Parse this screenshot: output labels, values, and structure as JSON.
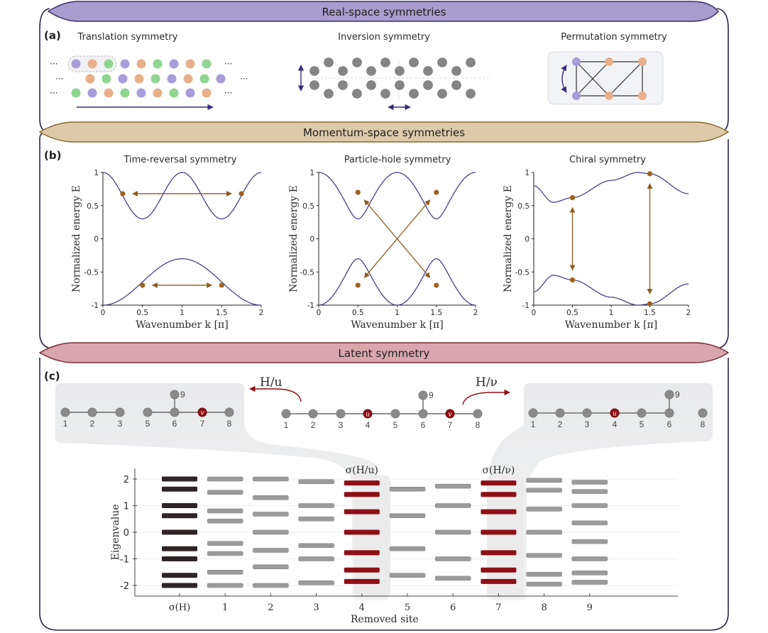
{
  "panels": {
    "a": {
      "label": "(a)",
      "header": "Real-space symmetries",
      "header_color": "#a99cce",
      "subtitles": [
        "Translation symmetry",
        "Inversion symmetry",
        "Permutation symmetry"
      ],
      "dots": "···",
      "lattice_colors": [
        "#a99cdb",
        "#e8b08a",
        "#8fd58f"
      ]
    },
    "b": {
      "label": "(b)",
      "header": "Momentum-space symmetries",
      "header_color": "#dccaa9"
    },
    "c": {
      "label": "(c)",
      "header": "Latent symmetry",
      "header_color": "#d9a6ae",
      "op_u": "H/υ",
      "op_u_text": "H/u",
      "op_v_text": "H/ν",
      "sigma_u": "σ(H/u)",
      "sigma_v": "σ(H/ν)",
      "node_u_mark": "u",
      "node_v_mark": "v",
      "graph_left_labels": [
        "1",
        "2",
        "3",
        "5",
        "6",
        "7",
        "8",
        "9"
      ],
      "graph_center_labels": [
        "1",
        "2",
        "3",
        "4",
        "5",
        "6",
        "7",
        "8",
        "9"
      ],
      "graph_right_labels": [
        "1",
        "2",
        "3",
        "4",
        "5",
        "6",
        "8",
        "9"
      ]
    }
  },
  "chart_data": [
    {
      "type": "line",
      "title": "Time-reversal symmetry",
      "xlabel": "Wavenumber k [π]",
      "ylabel": "Normalized energy E",
      "xlim": [
        0,
        2
      ],
      "ylim": [
        -1,
        1
      ],
      "xticks": [
        "0",
        "0.5",
        "1",
        "1.5",
        "2"
      ],
      "yticks": [
        "-1",
        "-0.5",
        "0",
        "0.5",
        "1"
      ],
      "series": [
        {
          "name": "upper band",
          "description": "E = 0.65 + 0.35cos(2πk)",
          "points_k": [
            0,
            0.25,
            0.5,
            0.75,
            1,
            1.25,
            1.5,
            1.75,
            2
          ],
          "points_E": [
            1,
            0.65,
            0.3,
            0.65,
            1,
            0.65,
            0.3,
            0.65,
            1
          ]
        },
        {
          "name": "lower band",
          "description": "E = -0.65 - 0.35cos(πk)",
          "points_k": [
            0,
            0.5,
            1,
            1.5,
            2
          ],
          "points_E": [
            -1,
            -0.7,
            -0.3,
            -0.7,
            -1
          ]
        }
      ],
      "markers": [
        [
          0.25,
          0.68
        ],
        [
          1.75,
          0.68
        ],
        [
          0.5,
          -0.7
        ],
        [
          1.5,
          -0.7
        ]
      ],
      "arrows": [
        [
          [
            0.25,
            0.68
          ],
          [
            1.75,
            0.68
          ]
        ],
        [
          [
            0.5,
            -0.7
          ],
          [
            1.5,
            -0.7
          ]
        ]
      ]
    },
    {
      "type": "line",
      "title": "Particle-hole symmetry",
      "xlabel": "Wavenumber k [π]",
      "ylabel": "Normalized energy E",
      "xlim": [
        0,
        2
      ],
      "ylim": [
        -1,
        1
      ],
      "xticks": [
        "0",
        "0.5",
        "1",
        "1.5",
        "2"
      ],
      "yticks": [
        "-1",
        "-0.5",
        "0",
        "0.5",
        "1"
      ],
      "series": [
        {
          "name": "upper band",
          "points_k": [
            0,
            0.5,
            1,
            1.5,
            2
          ],
          "points_E": [
            1,
            0.7,
            0.3,
            0.7,
            1
          ]
        },
        {
          "name": "lower band",
          "points_k": [
            0,
            0.5,
            1,
            1.5,
            2
          ],
          "points_E": [
            -1,
            -0.7,
            -0.3,
            -0.7,
            -1
          ]
        }
      ],
      "markers": [
        [
          0.5,
          0.7
        ],
        [
          1.5,
          0.7
        ],
        [
          0.5,
          -0.7
        ],
        [
          1.5,
          -0.7
        ]
      ],
      "arrows": [
        [
          [
            0.5,
            0.7
          ],
          [
            1.5,
            -0.7
          ]
        ],
        [
          [
            1.5,
            0.7
          ],
          [
            0.5,
            -0.7
          ]
        ]
      ]
    },
    {
      "type": "line",
      "title": "Chiral symmetry",
      "xlabel": "Wavenumber k [π]",
      "ylabel": "Normalized energy E",
      "xlim": [
        0,
        2
      ],
      "ylim": [
        -1,
        1
      ],
      "xticks": [
        "0",
        "0.5",
        "1",
        "1.5",
        "2"
      ],
      "yticks": [
        "-1",
        "-0.5",
        "0",
        "0.5",
        "1"
      ],
      "series": [
        {
          "name": "upper band",
          "points_k": [
            0,
            0.25,
            0.5,
            1,
            1.35,
            1.5,
            2
          ],
          "points_E": [
            0.8,
            0.55,
            0.62,
            0.88,
            1,
            0.98,
            0.68
          ]
        },
        {
          "name": "lower band",
          "points_k": [
            0,
            0.25,
            0.5,
            1,
            1.35,
            1.5,
            2
          ],
          "points_E": [
            -0.8,
            -0.55,
            -0.62,
            -0.88,
            -1,
            -0.98,
            -0.68
          ]
        }
      ],
      "markers": [
        [
          0.5,
          0.62
        ],
        [
          0.5,
          -0.62
        ],
        [
          1.5,
          0.98
        ],
        [
          1.5,
          -0.98
        ]
      ],
      "arrows": [
        [
          [
            0.5,
            0.62
          ],
          [
            0.5,
            -0.62
          ]
        ],
        [
          [
            1.5,
            0.98
          ],
          [
            1.5,
            -0.98
          ]
        ]
      ]
    },
    {
      "type": "scatter",
      "subtype": "eigenvalue-levels",
      "xlabel": "Removed site",
      "ylabel": "Eigenvalue",
      "categories": [
        "σ(H)",
        "1",
        "2",
        "3",
        "4",
        "5",
        "6",
        "7",
        "8",
        "9"
      ],
      "ylim": [
        -2.4,
        2.4
      ],
      "yticks": [
        "-2",
        "-1",
        "0",
        "1",
        "2"
      ],
      "highlighted": {
        "4": "σ(H/u)",
        "7": "σ(H/ν)"
      },
      "colors": {
        "reference": "#2e2426",
        "normal": "#9b9b9b",
        "highlight": "#8e0f14"
      },
      "series": [
        {
          "name": "σ(H)",
          "values": [
            2.0,
            1.62,
            1.0,
            0.62,
            0.0,
            -0.62,
            -1.0,
            -1.62,
            -2.0
          ]
        },
        {
          "name": "1",
          "values": [
            2.0,
            1.5,
            0.8,
            0.42,
            -0.42,
            -0.8,
            -1.5,
            -2.0
          ]
        },
        {
          "name": "2",
          "values": [
            2.0,
            1.3,
            0.68,
            0.0,
            -0.68,
            -1.3,
            -2.0
          ]
        },
        {
          "name": "3",
          "values": [
            1.9,
            1.0,
            0.5,
            -0.5,
            -1.0,
            -1.9
          ]
        },
        {
          "name": "4",
          "values": [
            1.85,
            1.42,
            0.77,
            0.0,
            -0.77,
            -1.42,
            -1.85
          ]
        },
        {
          "name": "5",
          "values": [
            1.62,
            0.62,
            -0.62,
            -1.62
          ]
        },
        {
          "name": "6",
          "values": [
            1.73,
            1.0,
            0.0,
            -1.0,
            -1.73
          ]
        },
        {
          "name": "7",
          "values": [
            1.85,
            1.42,
            0.77,
            0.0,
            -0.77,
            -1.42,
            -1.85
          ]
        },
        {
          "name": "8",
          "values": [
            1.95,
            1.58,
            0.87,
            0.0,
            -0.87,
            -1.58,
            -1.95
          ]
        },
        {
          "name": "9",
          "values": [
            1.88,
            1.53,
            1.0,
            0.35,
            -0.35,
            -1.0,
            -1.53,
            -1.88
          ]
        }
      ]
    }
  ]
}
